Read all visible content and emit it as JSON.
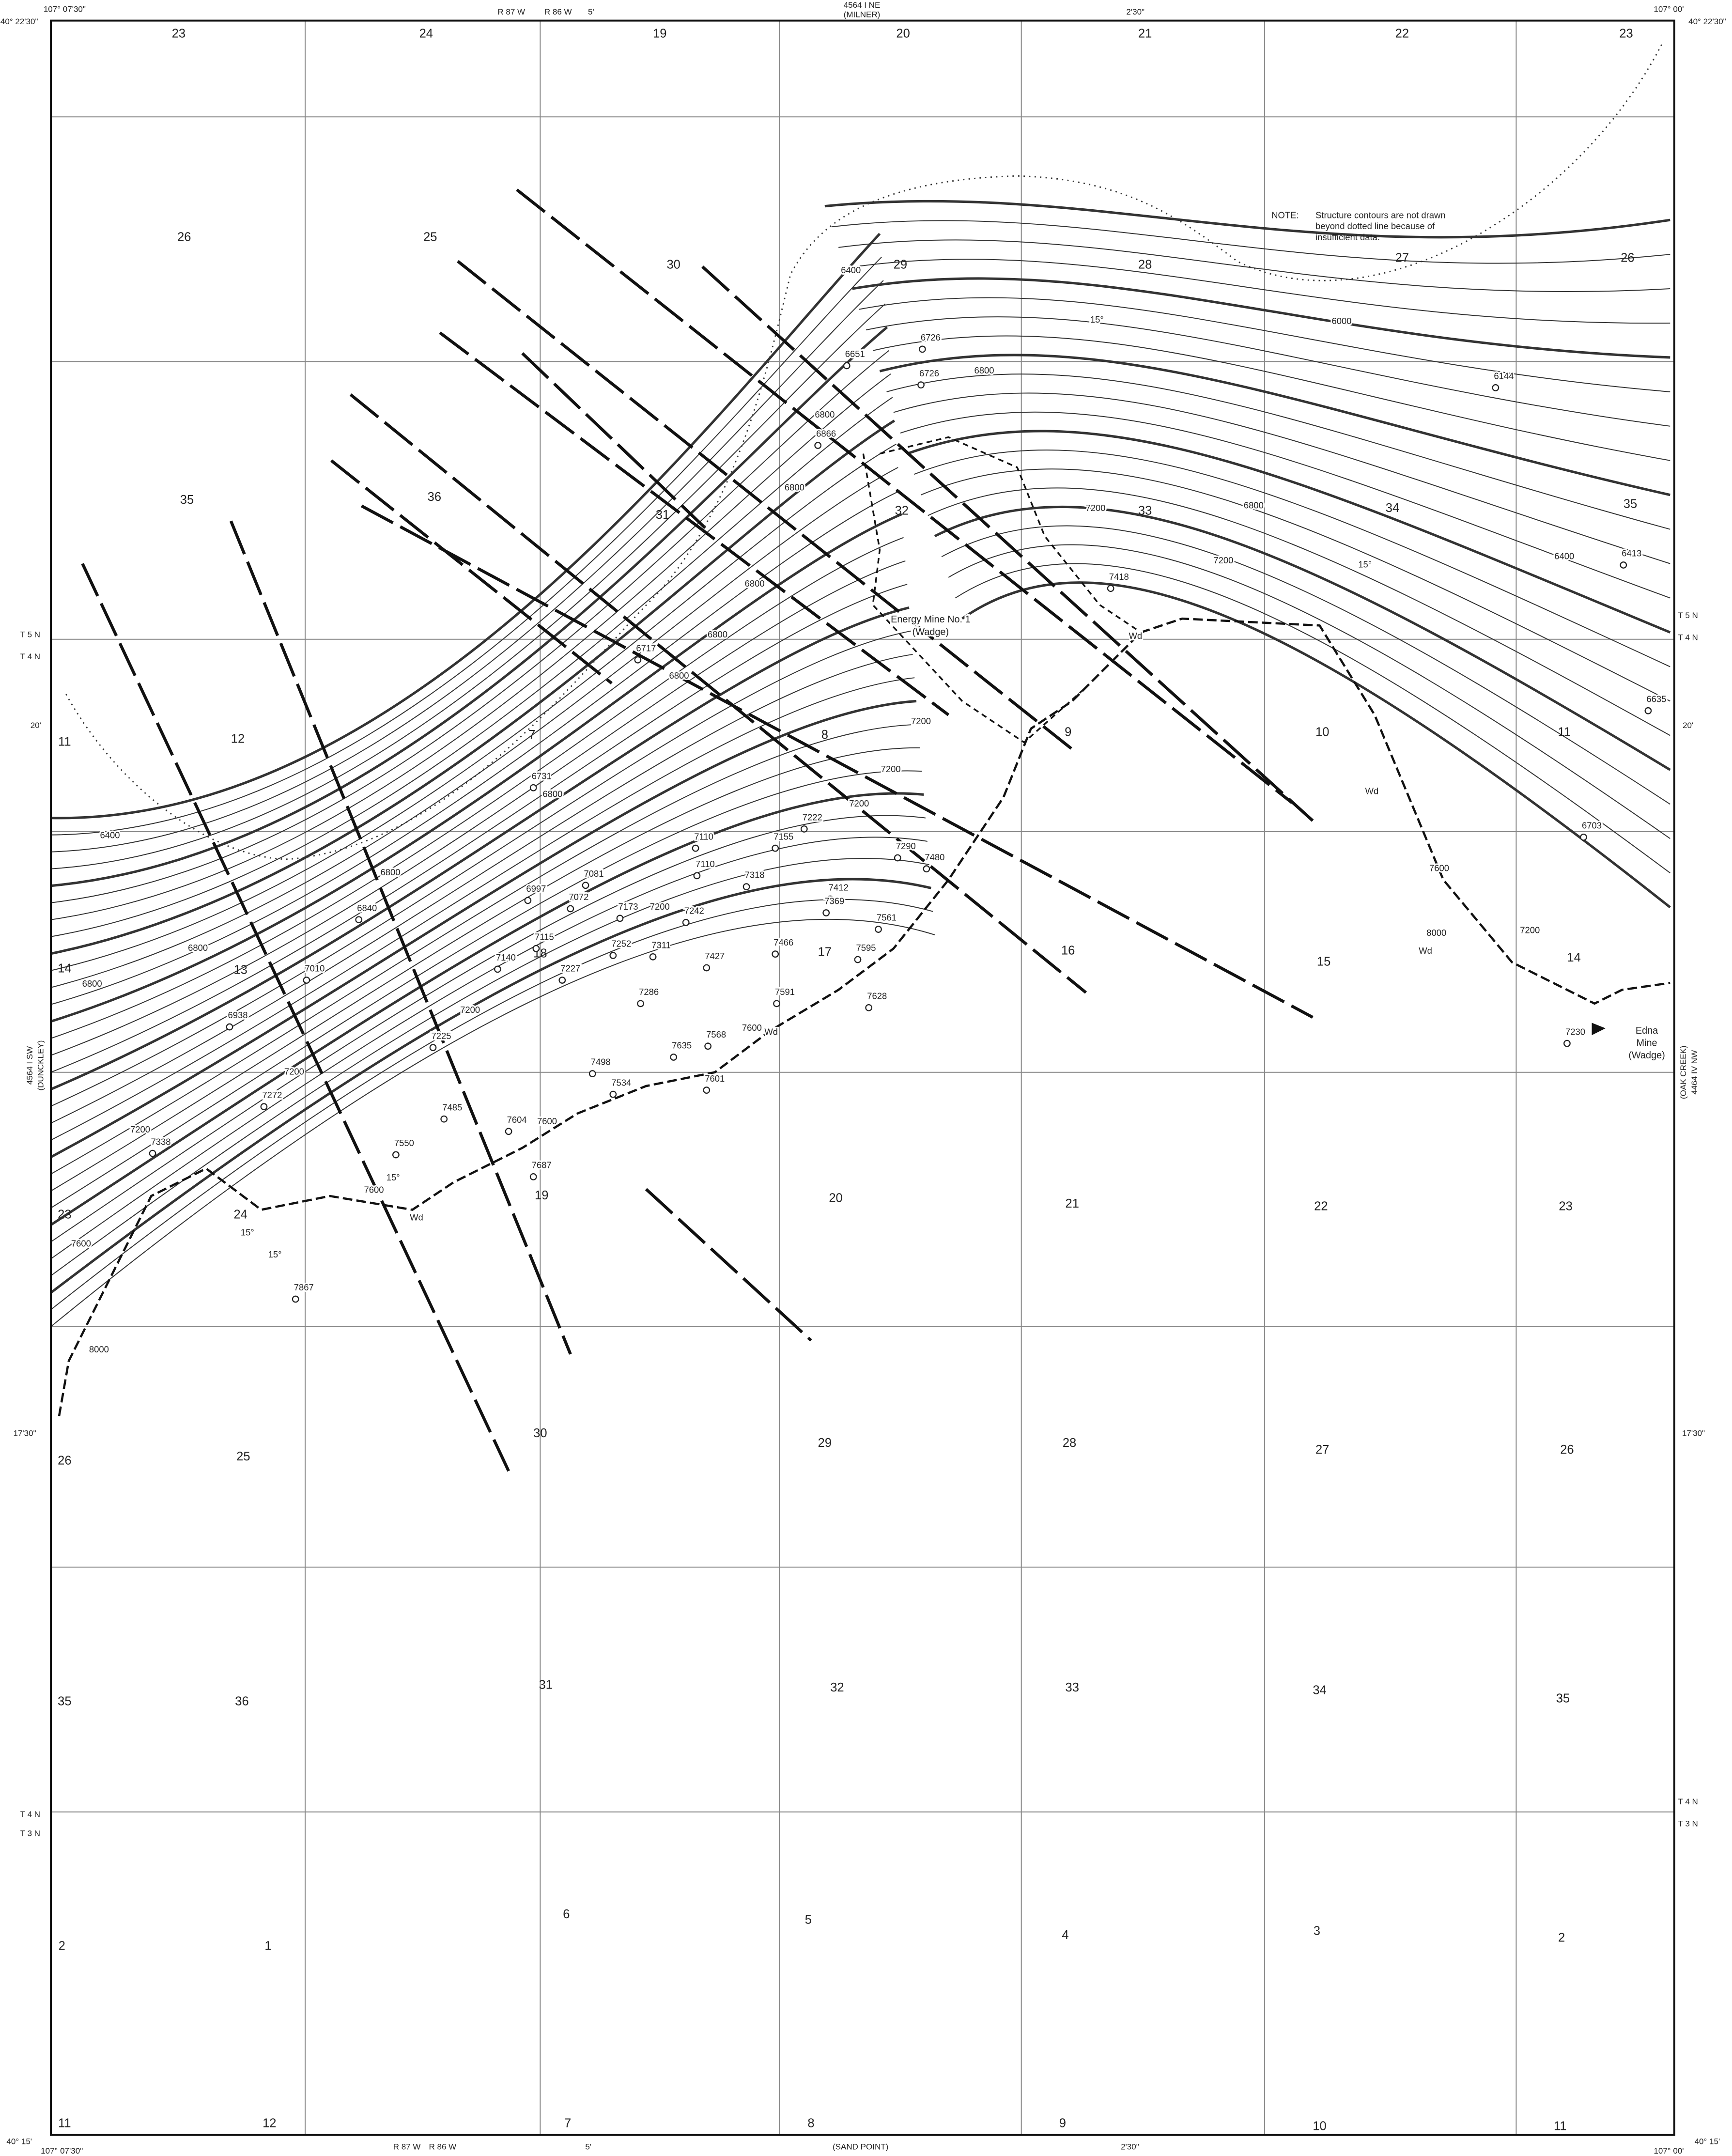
{
  "margin": {
    "labels": [
      "107° 07'30\"",
      "40° 22'30\"",
      "R 87 W",
      "R 86 W",
      "5'",
      "4564 I NE",
      "(MILNER)",
      "2'30\"",
      "107° 00'",
      "40° 22'30\"",
      "T 5 N",
      "T 4 N",
      "20'",
      "4564 I SW",
      "(DUNCKLEY)",
      "17'30\"",
      "T 4 N",
      "T 3 N",
      "40° 15'",
      "107° 07'30\"",
      "R 87 W",
      "R 86 W",
      "5'",
      "(SAND POINT)",
      "2'30\"",
      "40° 15'",
      "107° 00'",
      "T 5 N",
      "T 4 N",
      "20'",
      "(OAK CREEK)",
      "4464 IV NW",
      "17'30\"",
      "T 4 N",
      "T 3 N"
    ]
  },
  "note": {
    "heading": "NOTE:",
    "lines": [
      "Structure contours are not drawn",
      "beyond dotted line because of",
      "insufficient data."
    ]
  },
  "mines": [
    {
      "lines": [
        "Energy Mine No. 1",
        "(Wadge)"
      ]
    },
    {
      "lines": [
        "Edna",
        "Mine",
        "(Wadge)"
      ]
    }
  ],
  "sections": [
    "23",
    "24",
    "19",
    "20",
    "21",
    "22",
    "23",
    "26",
    "25",
    "30",
    "29",
    "28",
    "27",
    "26",
    "35",
    "36",
    "31",
    "32",
    "33",
    "34",
    "35",
    "11",
    "12",
    "7",
    "8",
    "9",
    "10",
    "11",
    "14",
    "13",
    "18",
    "17",
    "16",
    "15",
    "14",
    "23",
    "24",
    "19",
    "20",
    "21",
    "22",
    "23",
    "26",
    "25",
    "30",
    "29",
    "28",
    "27",
    "26",
    "35",
    "36",
    "31",
    "32",
    "33",
    "34",
    "35",
    "2",
    "1",
    "6",
    "5",
    "4",
    "3",
    "2",
    "11",
    "12",
    "7",
    "8",
    "9",
    "10",
    "11"
  ],
  "contour_labels": [
    "6400",
    "6000",
    "6800",
    "6800",
    "6800",
    "6800",
    "6800",
    "6800",
    "7200",
    "7200",
    "7200",
    "7200",
    "6800",
    "6800",
    "6800",
    "6800",
    "6400",
    "7200",
    "7200",
    "7200",
    "7600",
    "7600",
    "7600",
    "8000",
    "7600",
    "7200",
    "6800",
    "7200",
    "6400",
    "7600",
    "8000",
    "7200"
  ],
  "wells": [
    "6651",
    "6726",
    "6726",
    "6866",
    "7418",
    "6144",
    "6413",
    "6635",
    "6703",
    "6717",
    "6731",
    "7110",
    "7155",
    "7222",
    "7290",
    "7480",
    "7110",
    "7318",
    "7412",
    "7369",
    "6997",
    "7081",
    "7072",
    "7173",
    "7242",
    "6840",
    "7561",
    "7466",
    "7595",
    "7115",
    "7252",
    "7311",
    "7427",
    "7140",
    "7227",
    "7010",
    "7286",
    "7591",
    "7628",
    "6938",
    "7225",
    "7568",
    "7635",
    "7498",
    "7534",
    "7601",
    "7272",
    "7485",
    "7604",
    "7338",
    "7550",
    "7687",
    "7867",
    "7230"
  ],
  "outcrop_labels": [
    "Wd",
    "Wd",
    "Wd",
    "Wd",
    "Wd",
    "15°",
    "15°",
    "15°",
    "15°",
    "15°"
  ]
}
